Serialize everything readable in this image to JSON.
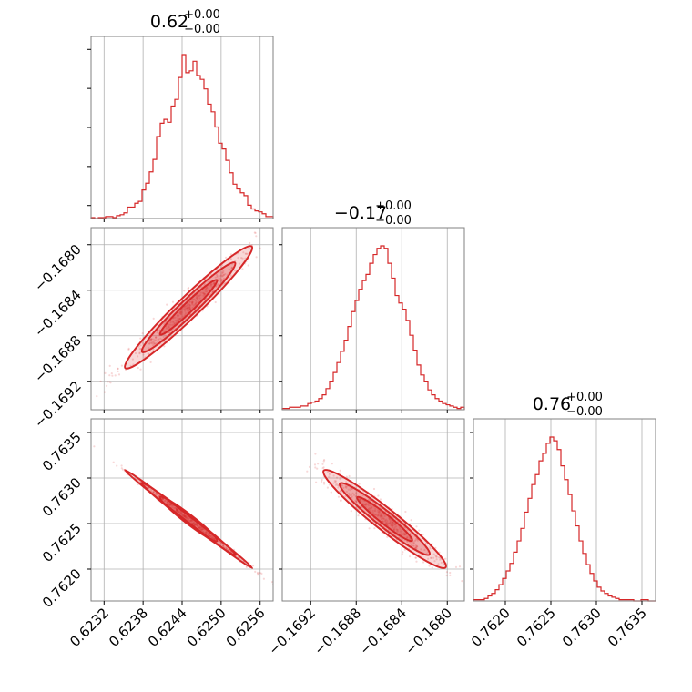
{
  "theme": {
    "line_color": "#d62728",
    "fill_color": "#d62728",
    "grid_color": "#b0b0b0",
    "frame_color": "#808080"
  },
  "chart_data": {
    "type": "corner",
    "parameters": [
      {
        "index": 0,
        "title_value": "0.62",
        "title_plus": "+0.00",
        "title_minus": "−0.00",
        "range": [
          0.623,
          0.6258
        ],
        "ticks": [
          0.6232,
          0.6238,
          0.6244,
          0.625,
          0.6256
        ],
        "tick_labels": [
          "0.6232",
          "0.6238",
          "0.6244",
          "0.6250",
          "0.6256"
        ],
        "mean": 0.6245,
        "sd": 0.0004
      },
      {
        "index": 1,
        "title_value": "−0.17",
        "title_plus": "+0.00",
        "title_minus": "−0.00",
        "range": [
          -0.16945,
          -0.16785
        ],
        "ticks": [
          -0.1692,
          -0.1688,
          -0.1684,
          -0.168
        ],
        "tick_labels": [
          "−0.1692",
          "−0.1688",
          "−0.1684",
          "−0.1680"
        ],
        "mean": -0.16855,
        "sd": 0.00022
      },
      {
        "index": 2,
        "title_value": "0.76",
        "title_plus": "+0.00",
        "title_minus": "−0.00",
        "range": [
          0.76165,
          0.76365
        ],
        "ticks": [
          0.762,
          0.7625,
          0.763,
          0.7635
        ],
        "tick_labels": [
          "0.7620",
          "0.7625",
          "0.7630",
          "0.7635"
        ],
        "mean": 0.76255,
        "sd": 0.00022
      }
    ],
    "correlations": {
      "p0_p1": 0.97,
      "p0_p2": -0.998,
      "p1_p2": -0.96
    },
    "histograms": [
      [
        1,
        0,
        1,
        1,
        2,
        2,
        1,
        3,
        4,
        6,
        12,
        12,
        16,
        18,
        30,
        37,
        49,
        62,
        86,
        100,
        104,
        101,
        118,
        125,
        148,
        172,
        153,
        155,
        165,
        150,
        146,
        136,
        120,
        112,
        96,
        79,
        73,
        61,
        48,
        36,
        31,
        27,
        24,
        14,
        10,
        8,
        7,
        5,
        2,
        2
      ],
      [
        1,
        1,
        2,
        2,
        2,
        3,
        3,
        5,
        6,
        7,
        9,
        12,
        17,
        23,
        30,
        38,
        47,
        56,
        67,
        79,
        88,
        97,
        104,
        109,
        118,
        125,
        130,
        132,
        130,
        118,
        106,
        92,
        86,
        81,
        72,
        60,
        48,
        36,
        28,
        23,
        16,
        12,
        9,
        7,
        5,
        4,
        3,
        2,
        1,
        2
      ],
      [
        1,
        1,
        1,
        2,
        4,
        6,
        9,
        13,
        18,
        24,
        30,
        39,
        48,
        58,
        71,
        82,
        93,
        101,
        112,
        118,
        126,
        131,
        128,
        121,
        108,
        97,
        85,
        72,
        60,
        48,
        38,
        29,
        22,
        16,
        11,
        8,
        6,
        4,
        3,
        2,
        1,
        1,
        1,
        1,
        0,
        0,
        1,
        1,
        0,
        0
      ]
    ],
    "grid": true,
    "contour_levels": 3
  }
}
